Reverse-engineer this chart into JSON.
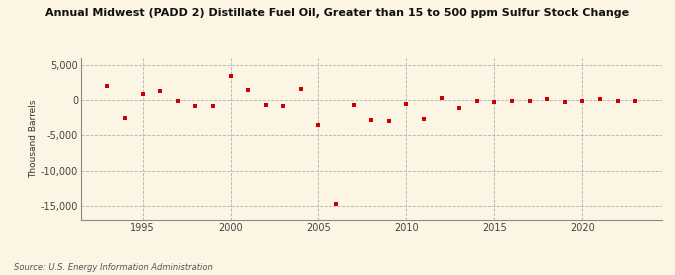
{
  "title": "Annual Midwest (PADD 2) Distillate Fuel Oil, Greater than 15 to 500 ppm Sulfur Stock Change",
  "ylabel": "Thousand Barrels",
  "source": "Source: U.S. Energy Information Administration",
  "background_color": "#fdf5e4",
  "point_color": "#cc0000",
  "years": [
    1993,
    1994,
    1995,
    1996,
    1997,
    1998,
    1999,
    2000,
    2001,
    2002,
    2003,
    2004,
    2005,
    2006,
    2007,
    2008,
    2009,
    2010,
    2011,
    2012,
    2013,
    2014,
    2015,
    2016,
    2017,
    2018,
    2019,
    2020,
    2021,
    2022,
    2023
  ],
  "values": [
    2000,
    -2500,
    900,
    1300,
    -200,
    -800,
    -800,
    3400,
    1400,
    -700,
    -800,
    1500,
    -3500,
    -14800,
    -700,
    -2800,
    -3000,
    -500,
    -2700,
    300,
    -1100,
    -200,
    -300,
    -100,
    -200,
    100,
    -300,
    -100,
    100,
    -200,
    -100
  ],
  "ylim": [
    -17000,
    6000
  ],
  "yticks": [
    5000,
    0,
    -5000,
    -10000,
    -15000
  ],
  "xlim": [
    1991.5,
    2024.5
  ],
  "xticks": [
    1995,
    2000,
    2005,
    2010,
    2015,
    2020
  ]
}
